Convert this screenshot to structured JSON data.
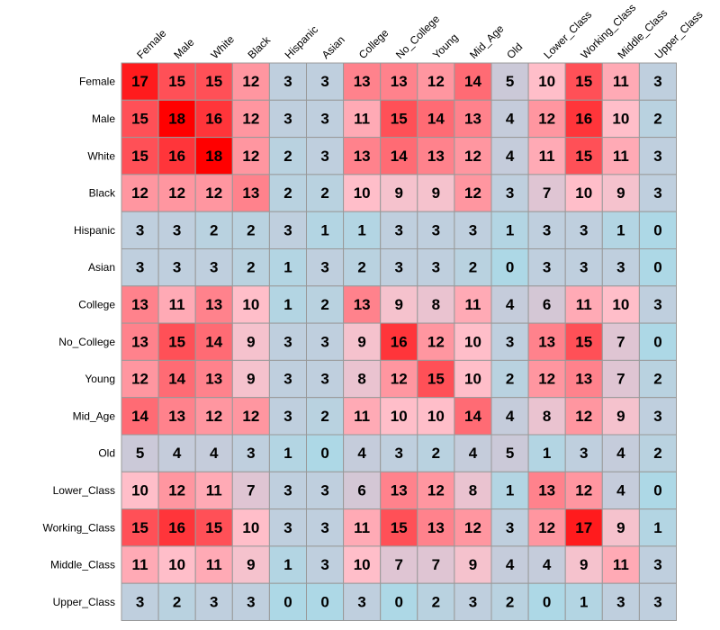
{
  "chart_data": {
    "type": "heatmap",
    "title": "",
    "xlabel": "",
    "ylabel": "",
    "rows": [
      "Female",
      "Male",
      "White",
      "Black",
      "Hispanic",
      "Asian",
      "College",
      "No_College",
      "Young",
      "Mid_Age",
      "Old",
      "Lower_Class",
      "Working_Class",
      "Middle_Class",
      "Upper_Class"
    ],
    "columns": [
      "Female",
      "Male",
      "White",
      "Black",
      "Hispanic",
      "Asian",
      "College",
      "No_College",
      "Young",
      "Mid_Age",
      "Old",
      "Lower_Class",
      "Working_Class",
      "Middle_Class",
      "Upper_Class"
    ],
    "values": [
      [
        17,
        15,
        15,
        12,
        3,
        3,
        13,
        13,
        12,
        14,
        5,
        10,
        15,
        11,
        3
      ],
      [
        15,
        18,
        16,
        12,
        3,
        3,
        11,
        15,
        14,
        13,
        4,
        12,
        16,
        10,
        2
      ],
      [
        15,
        16,
        18,
        12,
        2,
        3,
        13,
        14,
        13,
        12,
        4,
        11,
        15,
        11,
        3
      ],
      [
        12,
        12,
        12,
        13,
        2,
        2,
        10,
        9,
        9,
        12,
        3,
        7,
        10,
        9,
        3
      ],
      [
        3,
        3,
        2,
        2,
        3,
        1,
        1,
        3,
        3,
        3,
        1,
        3,
        3,
        1,
        0
      ],
      [
        3,
        3,
        3,
        2,
        1,
        3,
        2,
        3,
        3,
        2,
        0,
        3,
        3,
        3,
        0
      ],
      [
        13,
        11,
        13,
        10,
        1,
        2,
        13,
        9,
        8,
        11,
        4,
        6,
        11,
        10,
        3
      ],
      [
        13,
        15,
        14,
        9,
        3,
        3,
        9,
        16,
        12,
        10,
        3,
        13,
        15,
        7,
        0
      ],
      [
        12,
        14,
        13,
        9,
        3,
        3,
        8,
        12,
        15,
        10,
        2,
        12,
        13,
        7,
        2
      ],
      [
        14,
        13,
        12,
        12,
        3,
        2,
        11,
        10,
        10,
        14,
        4,
        8,
        12,
        9,
        3
      ],
      [
        5,
        4,
        4,
        3,
        1,
        0,
        4,
        3,
        2,
        4,
        5,
        1,
        3,
        4,
        2
      ],
      [
        10,
        12,
        11,
        7,
        3,
        3,
        6,
        13,
        12,
        8,
        1,
        13,
        12,
        4,
        0
      ],
      [
        15,
        16,
        15,
        10,
        3,
        3,
        11,
        15,
        13,
        12,
        3,
        12,
        17,
        9,
        1
      ],
      [
        11,
        10,
        11,
        9,
        1,
        3,
        10,
        7,
        7,
        9,
        4,
        4,
        9,
        11,
        3
      ],
      [
        3,
        2,
        3,
        3,
        0,
        0,
        3,
        0,
        2,
        3,
        2,
        0,
        1,
        3,
        3
      ]
    ],
    "colorscale": {
      "low": "#add8e6",
      "high": "#ff0000"
    },
    "grid": true,
    "legend": "none"
  }
}
